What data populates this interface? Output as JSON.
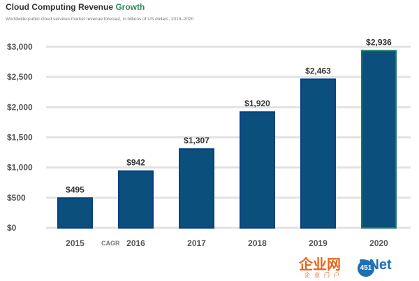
{
  "header": {
    "title_main": "Cloud Computing Revenue ",
    "title_accent": "Growth",
    "subtitle": "Worldwide public cloud services market revenue forecast, in billions of US dollars, 2015–2020"
  },
  "source_mark": "CAGR",
  "watermark": {
    "part1": "企业网",
    "part2": "D",
    "part3": "Net",
    "badge": "451",
    "sub": "企业门户"
  },
  "chart_data": {
    "type": "bar",
    "categories": [
      "2015",
      "2016",
      "2017",
      "2018",
      "2019",
      "2020"
    ],
    "values": [
      495,
      942,
      1307,
      1920,
      2463,
      2936
    ],
    "value_labels": [
      "$495",
      "$942",
      "$1,307",
      "$1,920",
      "$2,463",
      "$2,936"
    ],
    "yticks": [
      0,
      500,
      1000,
      1500,
      2000,
      2500,
      3000
    ],
    "ytick_labels": [
      "$0",
      "$500",
      "$1,000",
      "$1,500",
      "$2,000",
      "$2,500",
      "$3,000"
    ],
    "ylim": [
      0,
      3000
    ],
    "grid": true,
    "colors": {
      "bar": "#0b4f7c",
      "bar_edge": "#0a3f86",
      "bar_edge_last": "#1b7a5c",
      "grid": "#e2e2e2"
    }
  }
}
